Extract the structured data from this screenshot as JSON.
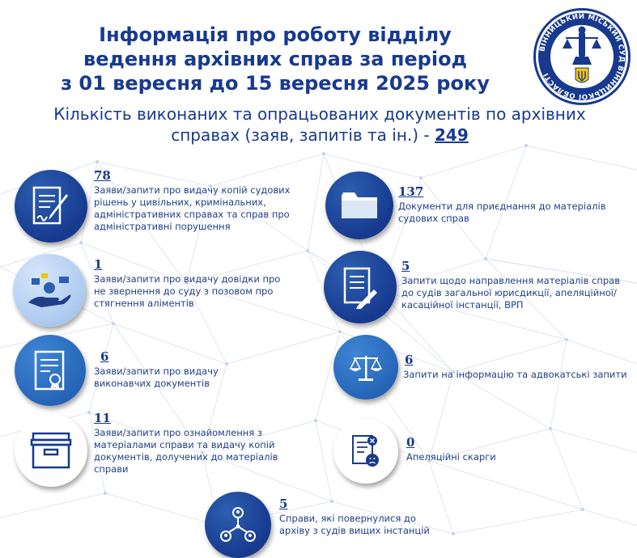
{
  "title": {
    "line1": "Інформація про роботу відділу",
    "line2": "ведення архівних справ за період",
    "line3": "з 01 вересня до 15 вересня 2025 року"
  },
  "subtitle": {
    "line1": "Кількість виконаних та опрацьованих документів по архівних",
    "line2_prefix": "справах (заяв, запитів та ін.) - ",
    "total": "249"
  },
  "seal": {
    "text": "ВІННИЦЬКИЙ МІСЬКИЙ СУД ВІННИЦЬКОЇ ОБЛАСТІ",
    "accent": "#173a8f",
    "trident": "#f1c40f"
  },
  "items": [
    {
      "id": "copies-decisions",
      "icon": "document-sign-icon",
      "count": "78",
      "desc": [
        "Заяви/запити про видачу копій судових",
        "рішень у цивільних, кримінальних,",
        "адміністративних справах та справ про",
        "адміністративні порушення"
      ]
    },
    {
      "id": "attach-docs",
      "icon": "folder-icon",
      "count": "137",
      "desc": [
        "Документи для приєднання до матеріалів",
        "судових справ"
      ]
    },
    {
      "id": "alimony-cert",
      "icon": "hand-money-icon",
      "count": "1",
      "desc": [
        "Заяви/запити про видачу довідки про",
        "не звернення до суду з позовом про",
        "стягнення аліментів"
      ]
    },
    {
      "id": "send-materials",
      "icon": "clipboard-pen-icon",
      "count": "5",
      "desc": [
        "Запити щодо направлення матеріалів справ",
        "до судів загальної юрисдикції, апеляційної/",
        "касаційної інстанції, ВРП"
      ]
    },
    {
      "id": "enforcement-docs",
      "icon": "certificate-icon",
      "count": "6",
      "desc": [
        "Заяви/запити про видачу",
        "виконавчих документів"
      ]
    },
    {
      "id": "info-requests",
      "icon": "scales-icon",
      "count": "6",
      "desc": [
        "Запити на інформацію та адвокатські запити"
      ]
    },
    {
      "id": "familiarization",
      "icon": "archive-box-icon",
      "count": "11",
      "desc": [
        "Заяви/запити про ознайомлення з",
        "матеріалами справи та видачу копій",
        "документів, долучених до матеріалів",
        "справи"
      ]
    },
    {
      "id": "appeals",
      "icon": "complaint-icon",
      "count": "0",
      "desc": [
        "Апеляційні скарги"
      ]
    },
    {
      "id": "returned-cases",
      "icon": "network-users-icon",
      "count": "5",
      "desc": [
        "Справи, які повернулися до",
        "архіву з судів вищих інстанцій"
      ]
    }
  ]
}
